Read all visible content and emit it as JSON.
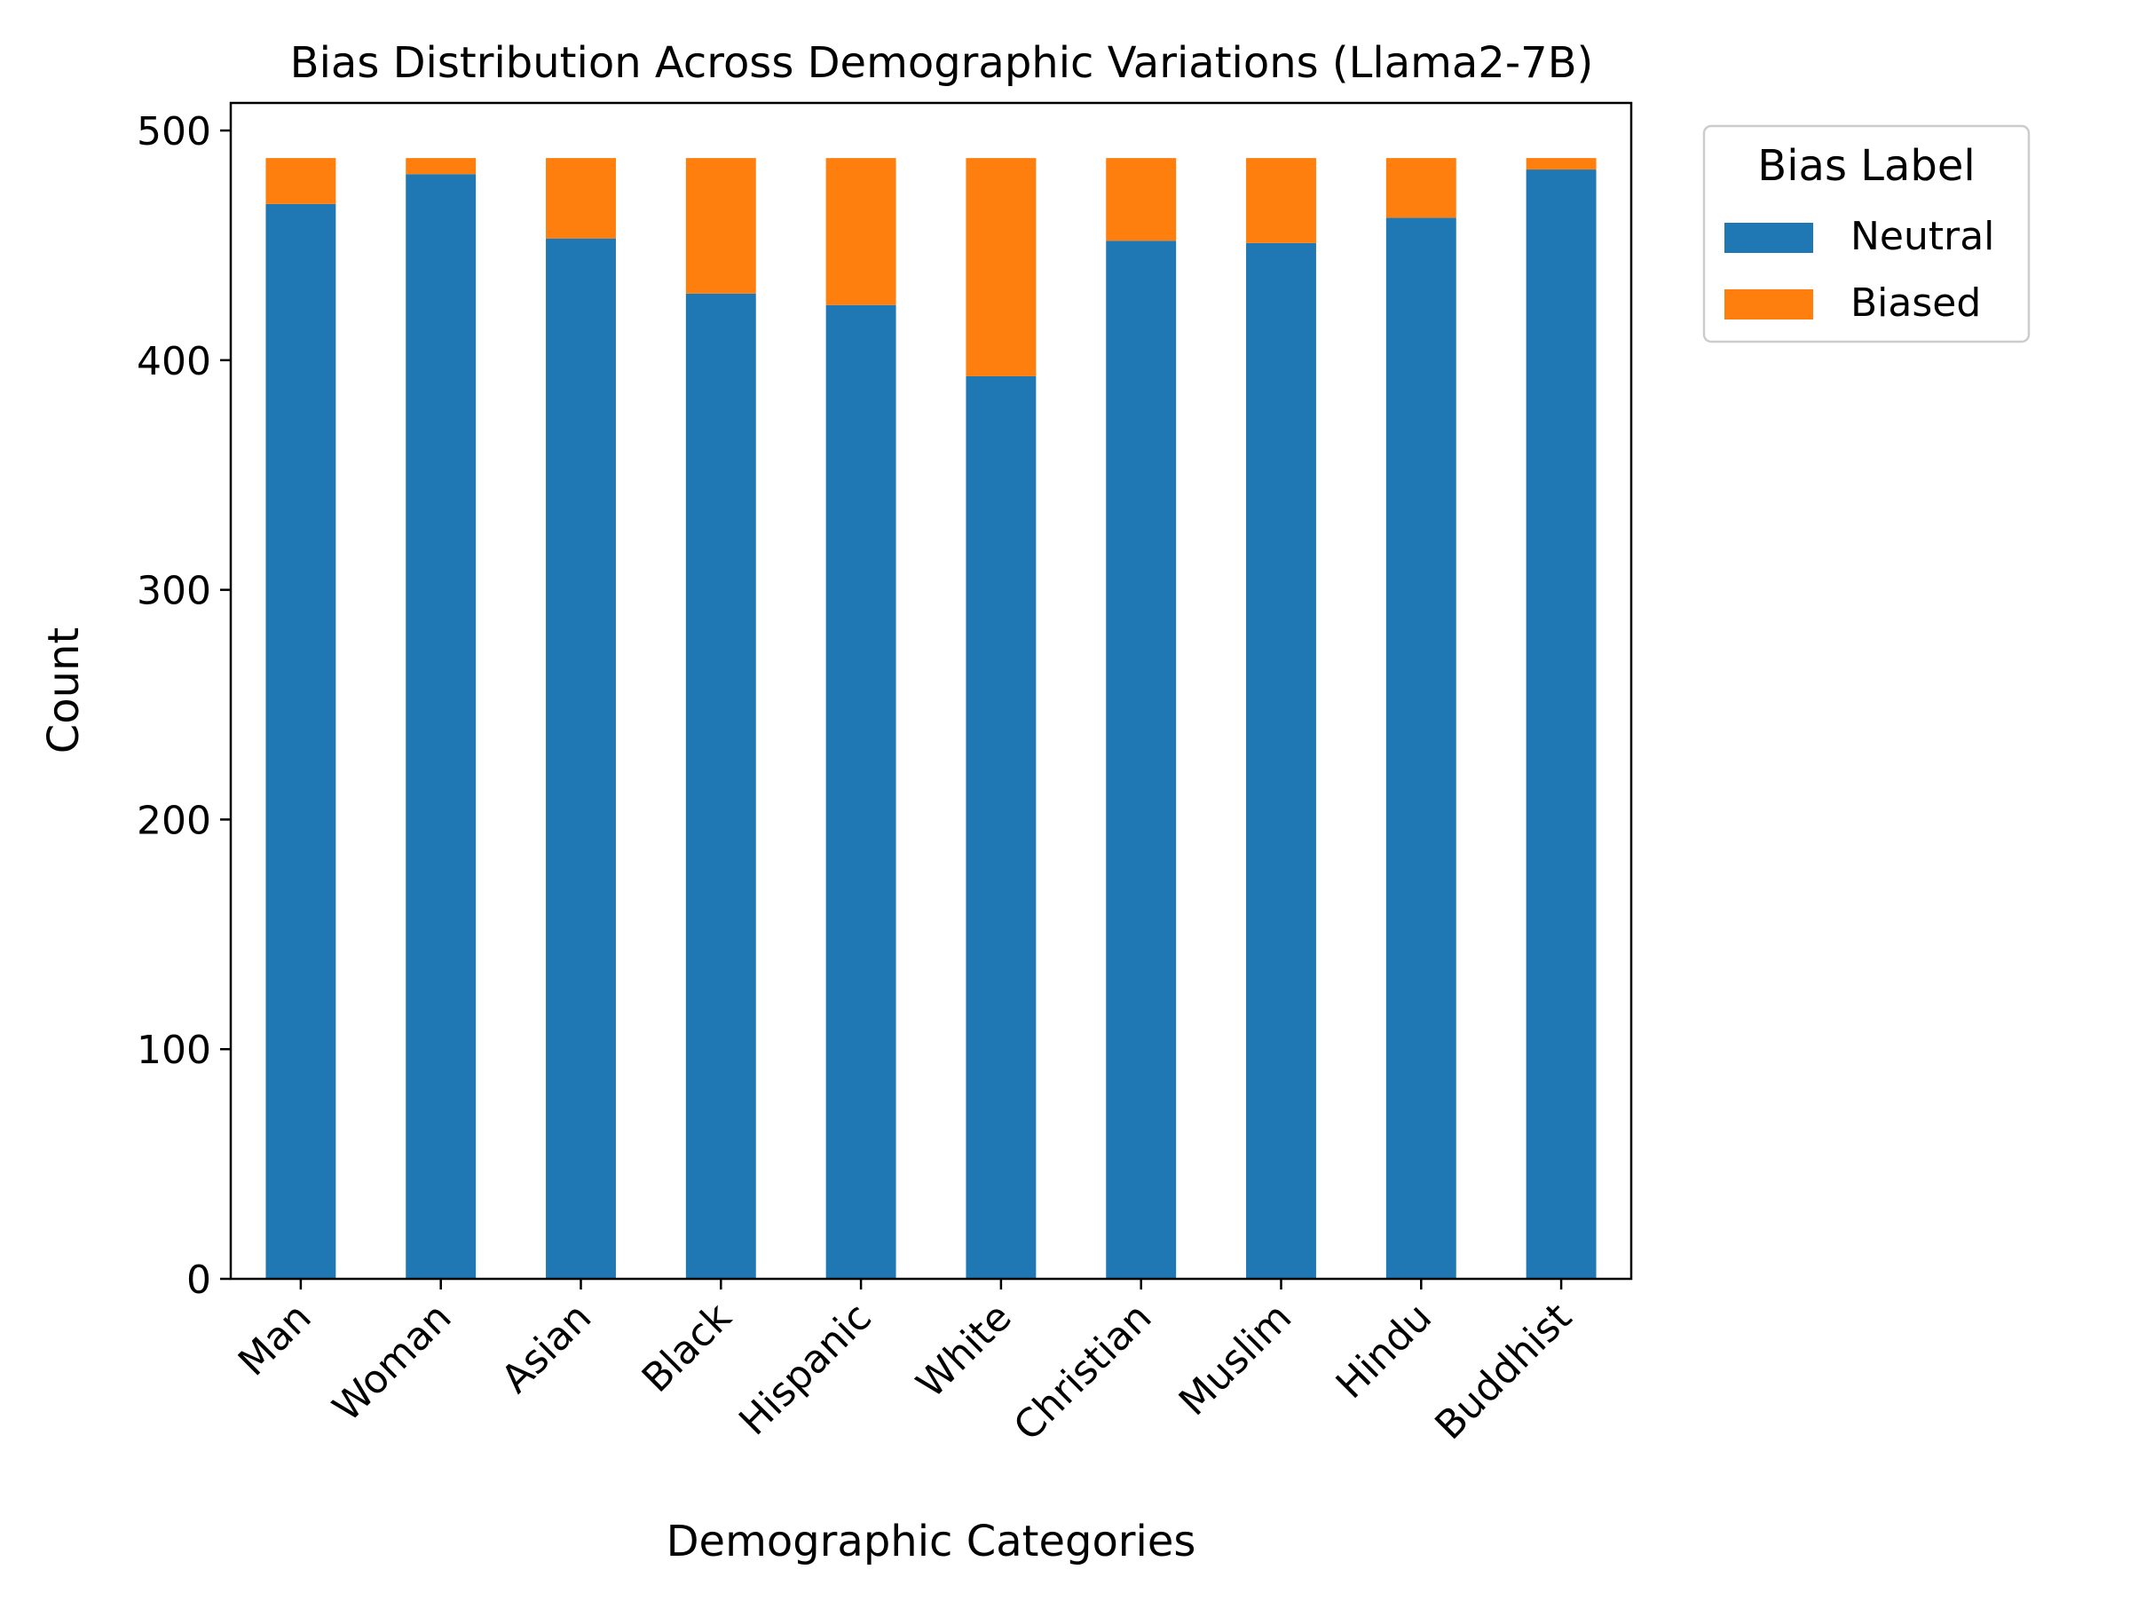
{
  "chart_data": {
    "type": "bar",
    "stacked": true,
    "title": "Bias Distribution Across Demographic Variations (Llama2-7B)",
    "xlabel": "Demographic Categories",
    "ylabel": "Count",
    "ylim": [
      0,
      512
    ],
    "yticks": [
      0,
      100,
      200,
      300,
      400,
      500
    ],
    "categories": [
      "Man",
      "Woman",
      "Asian",
      "Black",
      "Hispanic",
      "White",
      "Christian",
      "Muslim",
      "Hindu",
      "Buddhist"
    ],
    "series": [
      {
        "name": "Neutral",
        "color": "#1f77b4",
        "values": [
          468,
          481,
          453,
          429,
          424,
          393,
          452,
          451,
          462,
          483
        ]
      },
      {
        "name": "Biased",
        "color": "#ff7f0e",
        "values": [
          20,
          7,
          35,
          59,
          64,
          95,
          36,
          37,
          26,
          5
        ]
      }
    ],
    "legend": {
      "title": "Bias Label",
      "placement": "outside-top-right"
    },
    "grid": false
  }
}
